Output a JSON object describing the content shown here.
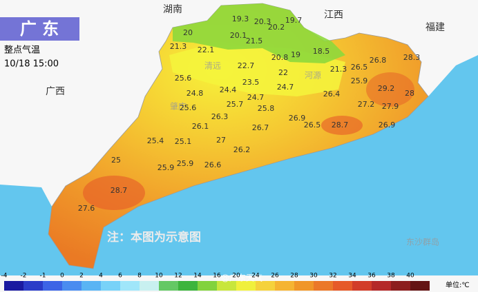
{
  "header": {
    "title": "广 东",
    "subtitle": "整点气温",
    "time": "10/18 15:00"
  },
  "regions": [
    "湖南",
    "江西",
    "福建",
    "广西"
  ],
  "cities": [
    "清远",
    "河源",
    "肇庆",
    "东沙群岛"
  ],
  "temperatures": [
    19.3,
    20.3,
    19.7,
    20.2,
    20,
    20.1,
    21.5,
    21.3,
    22.1,
    20.8,
    19,
    18.5,
    28.3,
    26.8,
    22.7,
    21.3,
    26.5,
    22,
    23.5,
    25.6,
    25.9,
    24.7,
    24.4,
    29.2,
    24.8,
    28,
    24.7,
    27.2,
    27.9,
    25.6,
    25.7,
    25.8,
    26.4,
    26.3,
    26.9,
    26.1,
    26.7,
    26.5,
    28.7,
    26.9,
    25.4,
    25.1,
    27,
    26.2,
    25.9,
    26.6,
    25.9,
    25,
    28.7,
    27.6
  ],
  "note": "注：本图为示意图",
  "legend": {
    "ticks": [
      -4,
      -2,
      -1,
      0,
      2,
      4,
      6,
      8,
      10,
      12,
      14,
      16,
      20,
      24,
      26,
      28,
      30,
      32,
      34,
      36,
      38,
      40
    ],
    "colors": [
      "#1a1aa0",
      "#2a3cc8",
      "#3c64e6",
      "#4a8cf0",
      "#5ab4f4",
      "#78d2f8",
      "#a0e6fa",
      "#c8f0f0",
      "#64c864",
      "#3cb43c",
      "#82d23c",
      "#c8e63c",
      "#f0f03c",
      "#f5d23c",
      "#f5b432",
      "#f09628",
      "#eb7828",
      "#e65a28",
      "#d23c28",
      "#b42828",
      "#8c1e1e",
      "#641414"
    ],
    "unit": "单位:℃"
  },
  "watermark": "@广东天气"
}
